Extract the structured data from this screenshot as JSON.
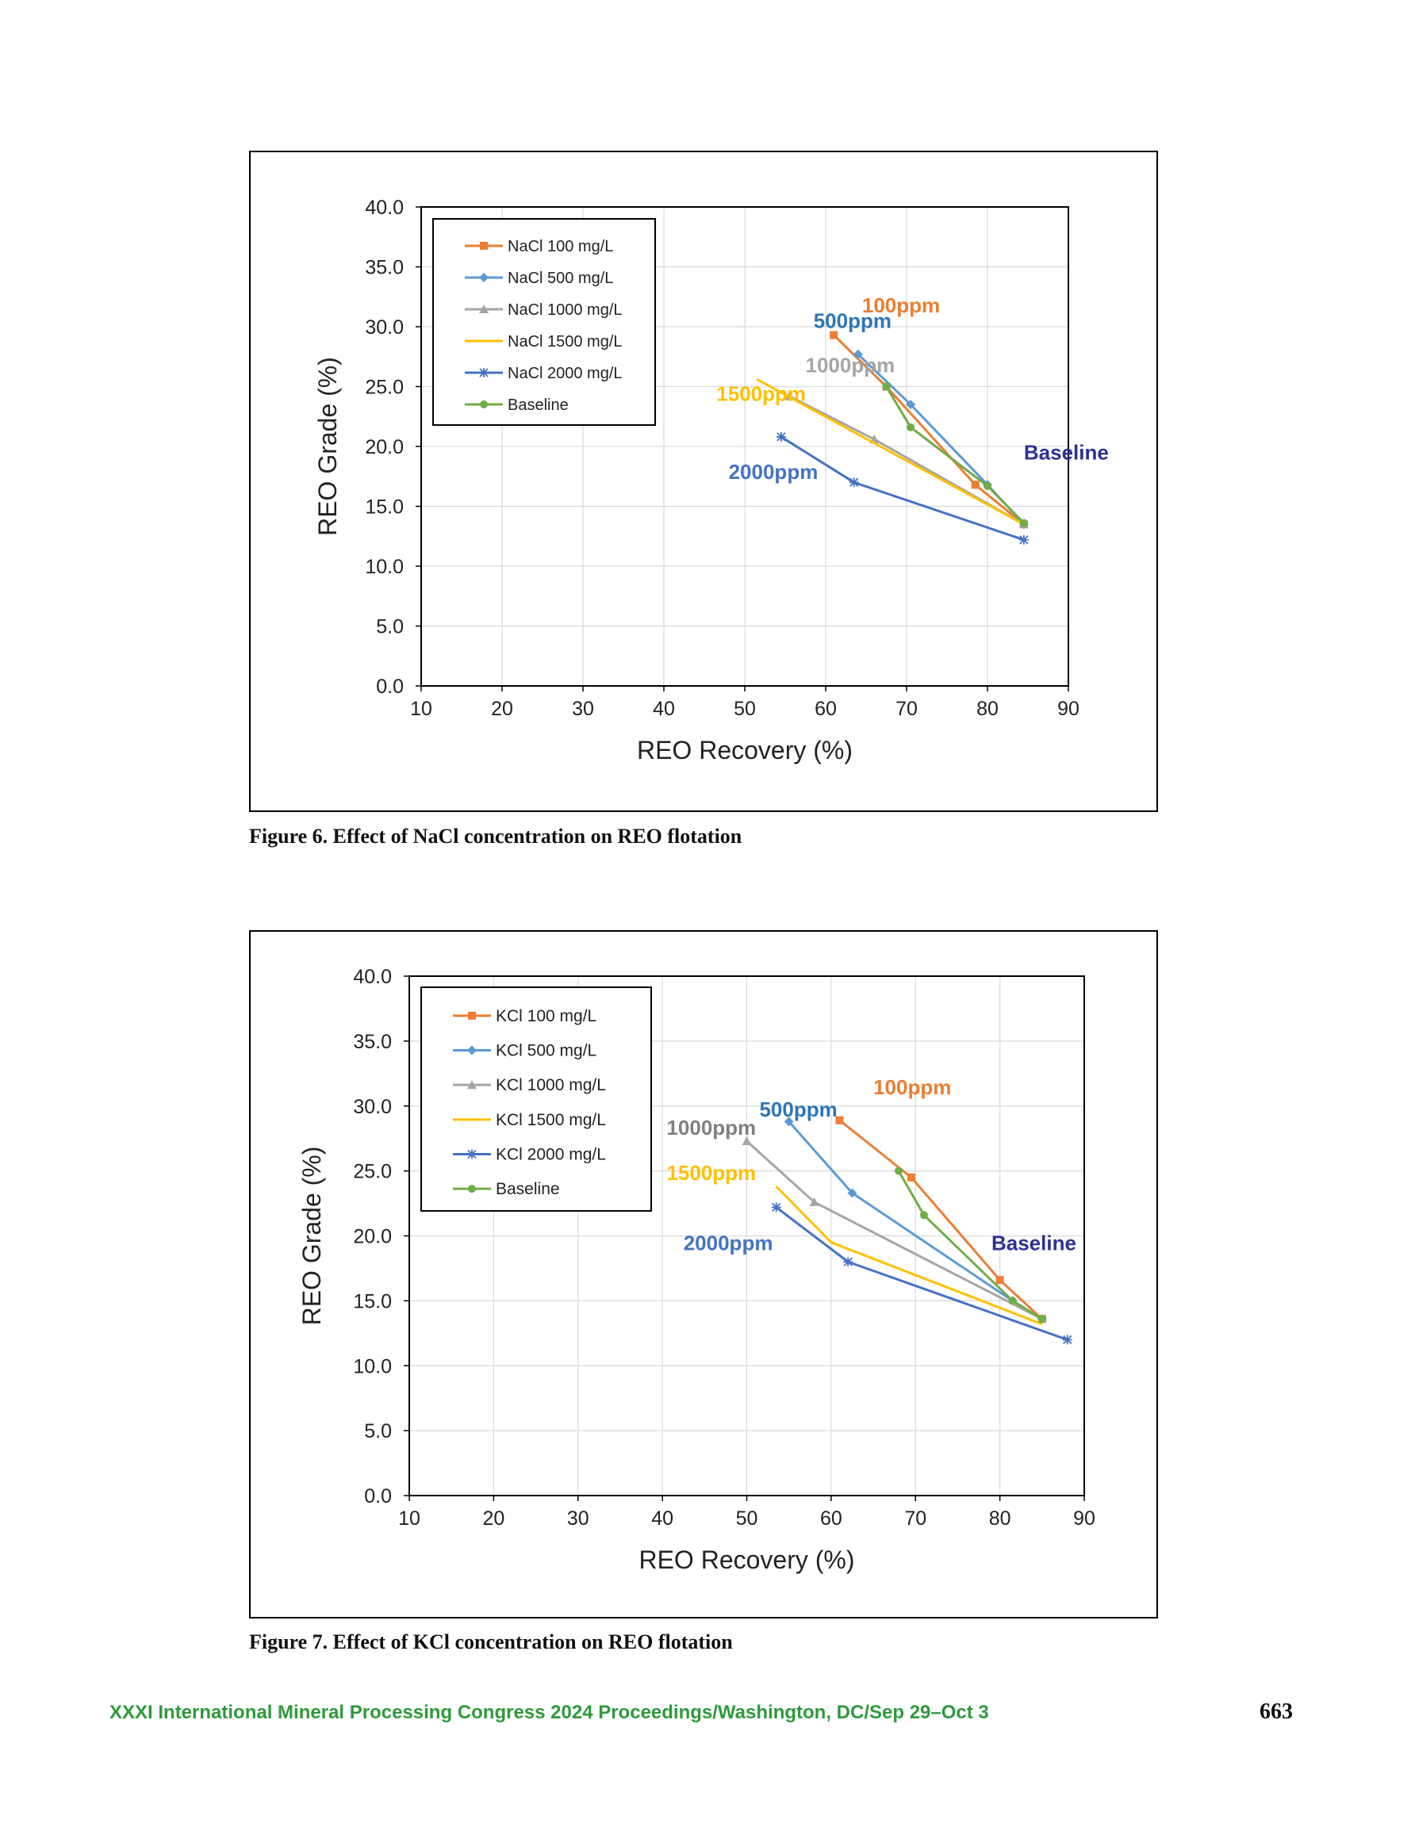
{
  "figures": [
    {
      "caption": "Figure 6. Effect of NaCl concentration on REO flotation",
      "chart_data": {
        "type": "line",
        "xlabel": "REO Recovery (%)",
        "ylabel": "REO Grade (%)",
        "xlim": [
          10,
          90
        ],
        "ylim": [
          0,
          40
        ],
        "xticks": [
          10,
          20,
          30,
          40,
          50,
          60,
          70,
          80,
          90
        ],
        "yticks": [
          "0.0",
          "5.0",
          "10.0",
          "15.0",
          "20.0",
          "25.0",
          "30.0",
          "35.0",
          "40.0"
        ],
        "grid": true,
        "legend_position": "top-left",
        "series": [
          {
            "name": "NaCl 100 mg/L",
            "color": "#ED7D31",
            "marker": "square",
            "x": [
              61,
              67.5,
              78.5,
              84.5
            ],
            "y": [
              29.3,
              25.0,
              16.8,
              13.5
            ]
          },
          {
            "name": "NaCl 500 mg/L",
            "color": "#5B9BD5",
            "marker": "diamond",
            "x": [
              64,
              70.5,
              80,
              84.5
            ],
            "y": [
              27.7,
              23.5,
              16.8,
              13.5
            ]
          },
          {
            "name": "NaCl 1000 mg/L",
            "color": "#A5A5A5",
            "marker": "triangle",
            "x": [
              55.5,
              66,
              84.5
            ],
            "y": [
              24.2,
              20.6,
              13.5
            ]
          },
          {
            "name": "NaCl 1500 mg/L",
            "color": "#FFC000",
            "marker": "none",
            "x": [
              51.5,
              84.5
            ],
            "y": [
              25.6,
              13.5
            ]
          },
          {
            "name": "NaCl 2000 mg/L",
            "color": "#4472C4",
            "marker": "star",
            "x": [
              54.5,
              63.5,
              84.5
            ],
            "y": [
              20.8,
              17.0,
              12.2
            ]
          },
          {
            "name": "Baseline",
            "color": "#70AD47",
            "marker": "circle",
            "x": [
              67.5,
              70.5,
              80,
              84.5
            ],
            "y": [
              25.0,
              21.6,
              16.7,
              13.6
            ]
          }
        ],
        "annotations": [
          {
            "text": "100ppm",
            "x": 64.5,
            "y": 31.2,
            "color": "#ED7D31"
          },
          {
            "text": "500ppm",
            "x": 58.5,
            "y": 29.9,
            "color": "#2E75B6"
          },
          {
            "text": "1000ppm",
            "x": 57.5,
            "y": 26.2,
            "color": "#A5A5A5"
          },
          {
            "text": "1500ppm",
            "x": 46.5,
            "y": 23.8,
            "color": "#FFC000"
          },
          {
            "text": "2000ppm",
            "x": 48,
            "y": 17.3,
            "color": "#4472C4"
          },
          {
            "text": "Baseline",
            "x": 84.5,
            "y": 18.9,
            "color": "#2E3192"
          }
        ]
      }
    },
    {
      "caption": "Figure 7. Effect of KCl concentration on REO flotation",
      "chart_data": {
        "type": "line",
        "xlabel": "REO Recovery (%)",
        "ylabel": "REO Grade (%)",
        "xlim": [
          10,
          90
        ],
        "ylim": [
          0,
          40
        ],
        "xticks": [
          10,
          20,
          30,
          40,
          50,
          60,
          70,
          80,
          90
        ],
        "yticks": [
          "0.0",
          "5.0",
          "10.0",
          "15.0",
          "20.0",
          "25.0",
          "30.0",
          "35.0",
          "40.0"
        ],
        "grid": true,
        "legend_position": "top-left",
        "series": [
          {
            "name": "KCl 100 mg/L",
            "color": "#ED7D31",
            "marker": "square",
            "x": [
              61,
              69.5,
              80,
              85
            ],
            "y": [
              28.9,
              24.5,
              16.6,
              13.6
            ]
          },
          {
            "name": "KCl 500 mg/L",
            "color": "#5B9BD5",
            "marker": "diamond",
            "x": [
              55,
              62.5,
              81.5,
              85
            ],
            "y": [
              28.8,
              23.3,
              15.0,
              13.6
            ]
          },
          {
            "name": "KCl 1000 mg/L",
            "color": "#A5A5A5",
            "marker": "triangle",
            "x": [
              50,
              58,
              85
            ],
            "y": [
              27.3,
              22.6,
              13.6
            ]
          },
          {
            "name": "KCl 1500 mg/L",
            "color": "#FFC000",
            "marker": "none",
            "x": [
              53.5,
              60,
              85
            ],
            "y": [
              23.8,
              19.5,
              13.2
            ]
          },
          {
            "name": "KCl 2000 mg/L",
            "color": "#4472C4",
            "marker": "star",
            "x": [
              53.5,
              62,
              88
            ],
            "y": [
              22.2,
              18.0,
              12.0
            ]
          },
          {
            "name": "Baseline",
            "color": "#70AD47",
            "marker": "circle",
            "x": [
              68,
              71,
              81.5,
              85
            ],
            "y": [
              25.0,
              21.6,
              15.0,
              13.6
            ]
          }
        ],
        "annotations": [
          {
            "text": "100ppm",
            "x": 65,
            "y": 30.9,
            "color": "#ED7D31"
          },
          {
            "text": "500ppm",
            "x": 51.5,
            "y": 29.2,
            "color": "#2E75B6"
          },
          {
            "text": "1000ppm",
            "x": 40.5,
            "y": 27.8,
            "color": "#7F7F7F"
          },
          {
            "text": "1500ppm",
            "x": 40.5,
            "y": 24.3,
            "color": "#FFC000"
          },
          {
            "text": "2000ppm",
            "x": 42.5,
            "y": 18.9,
            "color": "#4472C4"
          },
          {
            "text": "Baseline",
            "x": 79,
            "y": 18.9,
            "color": "#2E3192"
          }
        ]
      }
    }
  ],
  "footer": {
    "text": "XXXI International Mineral Processing Congress 2024 Proceedings/Washington, DC/Sep 29–Oct 3",
    "page": "663"
  }
}
